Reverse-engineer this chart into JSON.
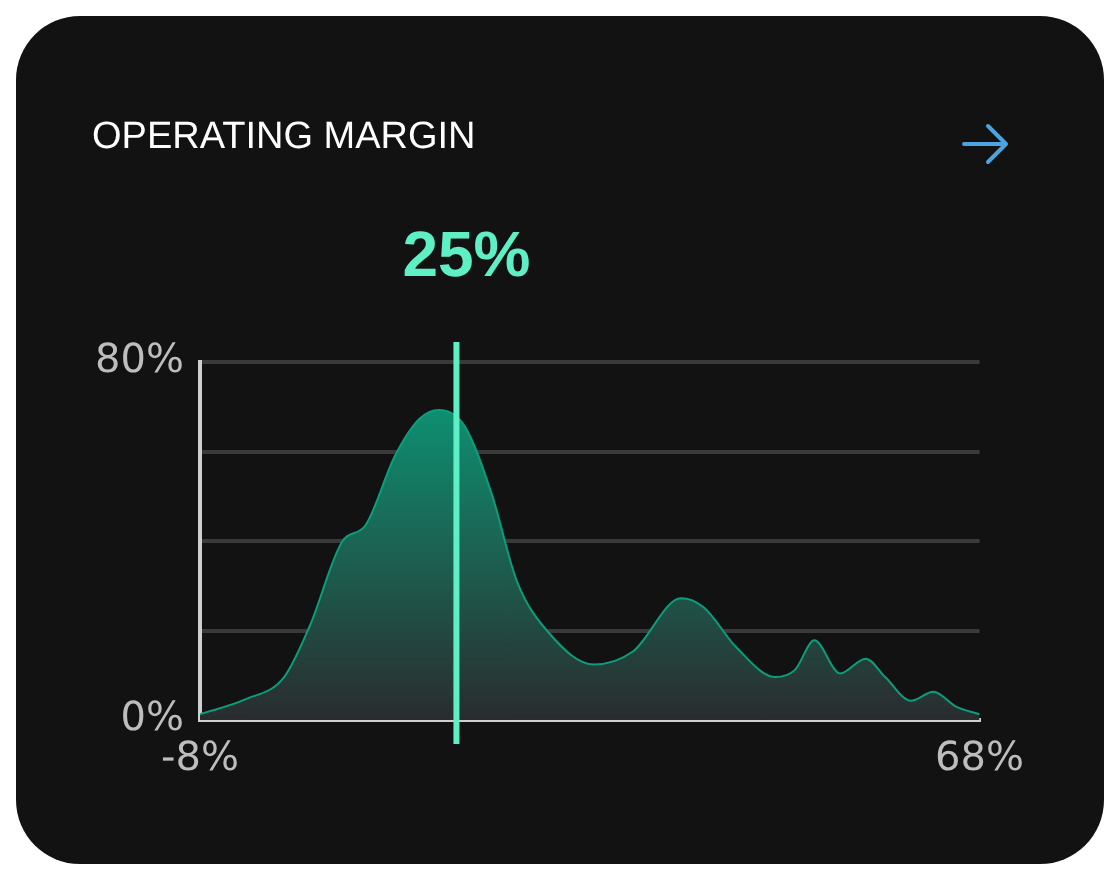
{
  "chart_data": {
    "type": "area",
    "title": "OPERATING MARGIN",
    "annotations": [
      "25%"
    ],
    "series": [
      {
        "color": "#0a9e7a",
        "x": [
          -8,
          -3.6,
          0.2,
          2.7,
          5.9,
          8.1,
          11,
          13.4,
          15.3,
          17.8,
          20.4,
          22.9,
          26,
          30.4,
          34.2,
          38.9,
          41.1,
          44.3,
          48.1,
          50,
          51.9,
          54.4,
          56.9,
          58.8,
          61.3,
          63.5,
          65.7,
          68
        ],
        "values": [
          1.3,
          4.6,
          9.6,
          21,
          40,
          43.4,
          59,
          67.3,
          69.3,
          65.7,
          50.8,
          31,
          19.5,
          12.4,
          15.3,
          27.2,
          25.2,
          16.2,
          9.6,
          11.2,
          17.8,
          10.4,
          13.7,
          9.6,
          4.3,
          6.3,
          3,
          1.3
        ]
      }
    ],
    "xlim": [
      -8,
      68
    ],
    "xticks": [
      {
        "value": -8,
        "label": "-8%"
      },
      {
        "value": 68,
        "label": "68%"
      }
    ],
    "ylim": [
      0,
      80
    ],
    "yticks": [
      {
        "value": 0,
        "label": "0%"
      },
      {
        "value": 20,
        "label": null
      },
      {
        "value": 40,
        "label": null
      },
      {
        "value": 60,
        "label": null
      },
      {
        "value": 80,
        "label": "80%"
      }
    ],
    "ref_lines": [
      {
        "axis": "x",
        "value": 17,
        "color": "#5ef0c4"
      }
    ],
    "grid": "y",
    "legend": false
  }
}
